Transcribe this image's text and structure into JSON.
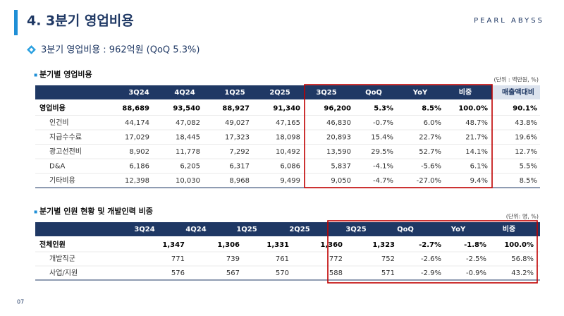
{
  "header": {
    "title": "4. 3분기 영업비용",
    "brand": "PEARL ABYSS"
  },
  "summary": "3분기 영업비용 : 962억원 (QoQ 5.3%)",
  "tables": [
    {
      "title": "분기별 영업비용",
      "unit": "(단위 : 백만원, %)",
      "columns": [
        "3Q24",
        "4Q24",
        "1Q25",
        "2Q25",
        "3Q25",
        "QoQ",
        "YoY",
        "비중",
        "매출액대비"
      ],
      "rows": [
        {
          "label": "영업비용",
          "cells": [
            "88,689",
            "93,540",
            "88,927",
            "91,340",
            "96,200",
            "5.3%",
            "8.5%",
            "100.0%",
            "90.1%"
          ]
        },
        {
          "label": "인건비",
          "cells": [
            "44,174",
            "47,082",
            "49,027",
            "47,165",
            "46,830",
            "-0.7%",
            "6.0%",
            "48.7%",
            "43.8%"
          ]
        },
        {
          "label": "지급수수료",
          "cells": [
            "17,029",
            "18,445",
            "17,323",
            "18,098",
            "20,893",
            "15.4%",
            "22.7%",
            "21.7%",
            "19.6%"
          ]
        },
        {
          "label": "광고선전비",
          "cells": [
            "8,902",
            "11,778",
            "7,292",
            "10,492",
            "13,590",
            "29.5%",
            "52.7%",
            "14.1%",
            "12.7%"
          ]
        },
        {
          "label": "D&A",
          "cells": [
            "6,186",
            "6,205",
            "6,317",
            "6,086",
            "5,837",
            "-4.1%",
            "-5.6%",
            "6.1%",
            "5.5%"
          ]
        },
        {
          "label": "기타비용",
          "cells": [
            "12,398",
            "10,030",
            "8,968",
            "9,499",
            "9,050",
            "-4.7%",
            "-27.0%",
            "9.4%",
            "8.5%"
          ]
        }
      ]
    },
    {
      "title": "분기별 인원 현황 및 개발인력 비중",
      "unit": "(단위: 명, %)",
      "columns": [
        "3Q24",
        "4Q24",
        "1Q25",
        "2Q25",
        "3Q25",
        "QoQ",
        "YoY",
        "비중"
      ],
      "rows": [
        {
          "label": "전체인원",
          "cells": [
            "1,347",
            "1,306",
            "1,331",
            "1,360",
            "1,323",
            "-2.7%",
            "-1.8%",
            "100.0%"
          ]
        },
        {
          "label": "개발직군",
          "cells": [
            "771",
            "739",
            "761",
            "772",
            "752",
            "-2.6%",
            "-2.5%",
            "56.8%"
          ]
        },
        {
          "label": "사업/지원",
          "cells": [
            "576",
            "567",
            "570",
            "588",
            "571",
            "-2.9%",
            "-0.9%",
            "43.2%"
          ]
        }
      ]
    }
  ],
  "page_number": "07"
}
